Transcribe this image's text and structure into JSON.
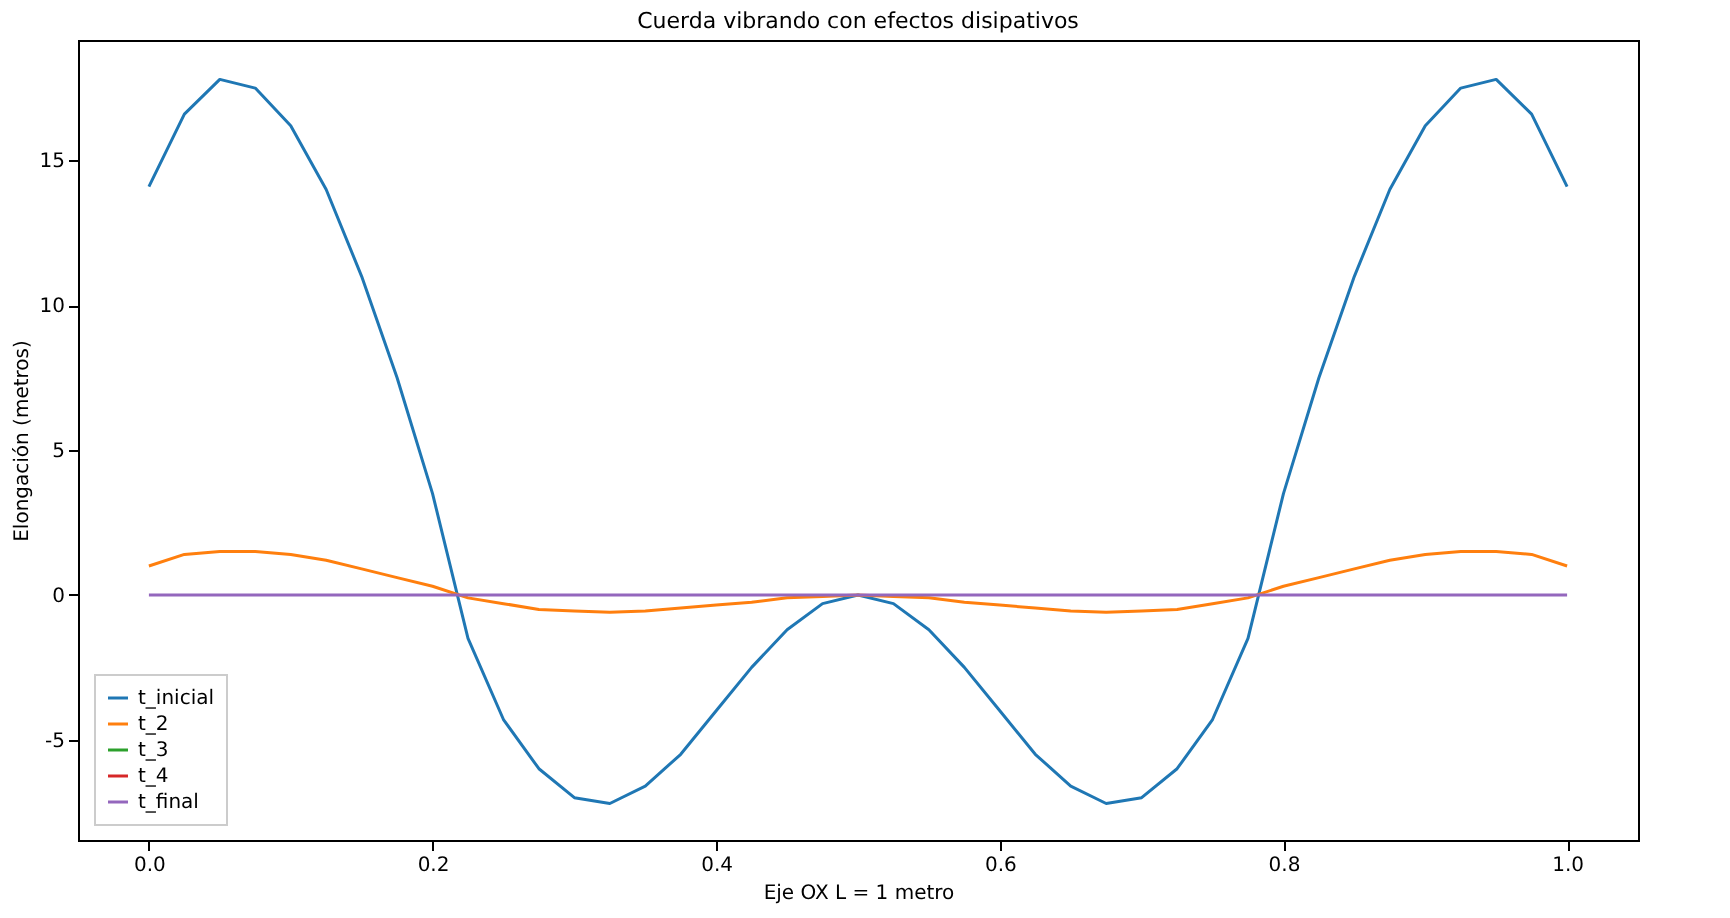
{
  "chart_data": {
    "type": "line",
    "title": "Cuerda vibrando con efectos disipativos",
    "xlabel": "Eje OX  L = 1 metro",
    "ylabel": "Elongación (metros)",
    "x": [
      0,
      0.025,
      0.05,
      0.075,
      0.1,
      0.125,
      0.15,
      0.175,
      0.2,
      0.225,
      0.25,
      0.275,
      0.3,
      0.325,
      0.35,
      0.375,
      0.4,
      0.425,
      0.45,
      0.475,
      0.5,
      0.525,
      0.55,
      0.575,
      0.6,
      0.625,
      0.65,
      0.675,
      0.7,
      0.725,
      0.75,
      0.775,
      0.8,
      0.825,
      0.85,
      0.875,
      0.9,
      0.925,
      0.95,
      0.975,
      1
    ],
    "series": [
      {
        "name": "t_inicial",
        "color": "#1f77b4",
        "values": [
          14.1,
          16.6,
          17.8,
          17.5,
          16.2,
          14.0,
          11.0,
          7.5,
          3.5,
          -1.5,
          -4.3,
          -6.0,
          -7.0,
          -7.2,
          -6.6,
          -5.5,
          -4.0,
          -2.5,
          -1.2,
          -0.3,
          0,
          -0.3,
          -1.2,
          -2.5,
          -4.0,
          -5.5,
          -6.6,
          -7.2,
          -7.0,
          -6.0,
          -4.3,
          -1.5,
          3.5,
          7.5,
          11.0,
          14.0,
          16.2,
          17.5,
          17.8,
          16.6,
          14.1
        ]
      },
      {
        "name": "t_2",
        "color": "#ff7f0e",
        "values": [
          1.0,
          1.4,
          1.5,
          1.5,
          1.4,
          1.2,
          0.9,
          0.6,
          0.3,
          -0.1,
          -0.3,
          -0.5,
          -0.55,
          -0.6,
          -0.55,
          -0.45,
          -0.35,
          -0.25,
          -0.1,
          -0.05,
          0,
          -0.05,
          -0.1,
          -0.25,
          -0.35,
          -0.45,
          -0.55,
          -0.6,
          -0.55,
          -0.5,
          -0.3,
          -0.1,
          0.3,
          0.6,
          0.9,
          1.2,
          1.4,
          1.5,
          1.5,
          1.4,
          1.0
        ]
      },
      {
        "name": "t_3",
        "color": "#2ca02c",
        "values": [
          null,
          null,
          null,
          null,
          null,
          null,
          null,
          null,
          null,
          null,
          null,
          null,
          null,
          null,
          null,
          null,
          null,
          null,
          null,
          null,
          null,
          null,
          null,
          null,
          null,
          null,
          null,
          null,
          null,
          null,
          null,
          null,
          null,
          null,
          null,
          null,
          null,
          null,
          null,
          null,
          null
        ]
      },
      {
        "name": "t_4",
        "color": "#d62728",
        "values": [
          null,
          null,
          null,
          null,
          null,
          null,
          null,
          null,
          null,
          null,
          null,
          null,
          null,
          null,
          null,
          null,
          null,
          null,
          null,
          null,
          null,
          null,
          null,
          null,
          null,
          null,
          null,
          null,
          null,
          null,
          null,
          null,
          null,
          null,
          null,
          null,
          null,
          null,
          null,
          null,
          null
        ]
      },
      {
        "name": "t_final",
        "color": "#9467bd",
        "values": [
          0,
          0,
          0,
          0,
          0,
          0,
          0,
          0,
          0,
          0,
          0,
          0,
          0,
          0,
          0,
          0,
          0,
          0,
          0,
          0,
          0,
          0,
          0,
          0,
          0,
          0,
          0,
          0,
          0,
          0,
          0,
          0,
          0,
          0,
          0,
          0,
          0,
          0,
          0,
          0,
          0
        ]
      }
    ],
    "xlim": [
      -0.05,
      1.05
    ],
    "ylim": [
      -8.46,
      19.16
    ],
    "xticks": [
      {
        "value": 0,
        "label": "0.0"
      },
      0.2,
      0.4,
      0.6,
      0.8,
      {
        "value": 1,
        "label": "1.0"
      }
    ],
    "yticks": [
      -5,
      0,
      5,
      10,
      15
    ],
    "grid": false,
    "legend": "bottom left",
    "marker": "none",
    "line_style": "solid"
  }
}
